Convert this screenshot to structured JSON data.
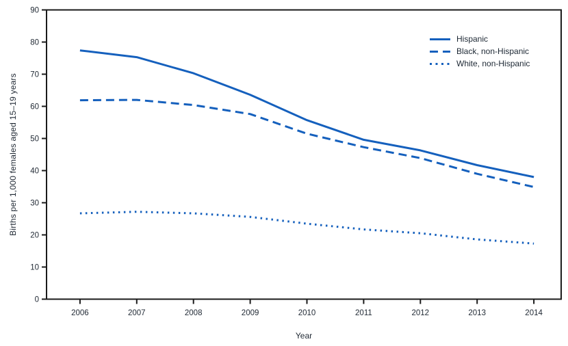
{
  "chart_data": {
    "type": "line",
    "title": "",
    "xlabel": "Year",
    "ylabel": "Births per 1,000 females aged 15–19 years",
    "categories": [
      "2006",
      "2007",
      "2008",
      "2009",
      "2010",
      "2011",
      "2012",
      "2013",
      "2014"
    ],
    "y_ticks": [
      0,
      10,
      20,
      30,
      40,
      50,
      60,
      70,
      80,
      90
    ],
    "ylim": [
      0,
      90
    ],
    "grid": false,
    "legend_position": "top-right-inside",
    "line_color": "#1560BD",
    "axis_color": "#1a1a1a",
    "text_color": "#1f2833",
    "series": [
      {
        "name": "Hispanic",
        "style": "solid",
        "values": [
          77.4,
          75.3,
          70.3,
          63.6,
          55.7,
          49.6,
          46.3,
          41.7,
          38.0
        ]
      },
      {
        "name": "Black, non-Hispanic",
        "style": "dashed",
        "values": [
          61.9,
          62.0,
          60.4,
          57.6,
          51.5,
          47.3,
          43.9,
          39.0,
          34.9
        ]
      },
      {
        "name": "White, non-Hispanic",
        "style": "dotted",
        "values": [
          26.7,
          27.2,
          26.7,
          25.6,
          23.5,
          21.7,
          20.5,
          18.6,
          17.3
        ]
      }
    ]
  }
}
